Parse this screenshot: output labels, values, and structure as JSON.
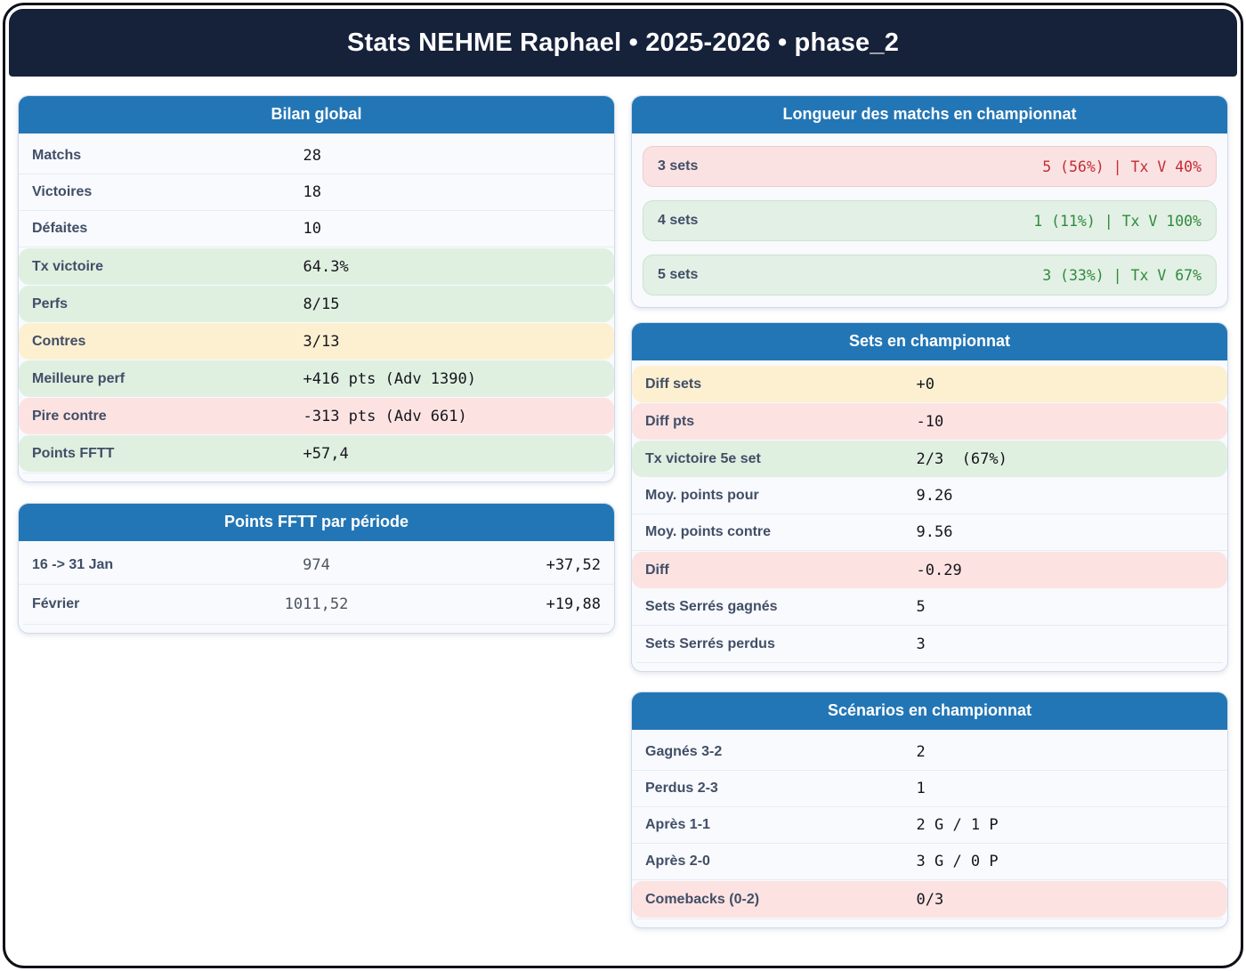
{
  "header": {
    "title": "Stats NEHME Raphael • 2025-2026 • phase_2"
  },
  "colors": {
    "frame": "#101018",
    "navy": "#16213a",
    "accent": "#2376b5",
    "positive_text": "#2e8b3c",
    "negative_text": "#c22d36",
    "green_tint": "#dff0e1",
    "yellow_tint": "#fdf0d1",
    "red_tint": "#fce3e2"
  },
  "panels": {
    "bilan": {
      "title": "Bilan global",
      "rows": [
        {
          "label": "Matchs",
          "value": "28",
          "tone": "plain"
        },
        {
          "label": "Victoires",
          "value": "18",
          "tone": "plain"
        },
        {
          "label": "Défaites",
          "value": "10",
          "tone": "plain"
        },
        {
          "label": "Tx victoire",
          "value": "64.3%",
          "tone": "green"
        },
        {
          "label": "Perfs",
          "value": "8/15",
          "tone": "green"
        },
        {
          "label": "Contres",
          "value": "3/13",
          "tone": "yellow"
        },
        {
          "label": "Meilleure perf",
          "value": "+416 pts (Adv 1390)",
          "tone": "green"
        },
        {
          "label": "Pire contre",
          "value": "-313 pts (Adv 661)",
          "tone": "red"
        },
        {
          "label": "Points FFTT",
          "value": "+57,4",
          "tone": "green"
        }
      ]
    },
    "periode": {
      "title": "Points FFTT par période",
      "rows": [
        {
          "label": "16 -> 31 Jan",
          "points": "974",
          "delta": "+37,52"
        },
        {
          "label": "Février",
          "points": "1011,52",
          "delta": "+19,88"
        }
      ]
    },
    "longueur": {
      "title": "Longueur des matchs en championnat",
      "rows": [
        {
          "label": "3 sets",
          "value": "5 (56%) | Tx V 40%",
          "tone": "red"
        },
        {
          "label": "4 sets",
          "value": "1 (11%) | Tx V 100%",
          "tone": "green"
        },
        {
          "label": "5 sets",
          "value": "3 (33%) | Tx V 67%",
          "tone": "green"
        }
      ]
    },
    "sets": {
      "title": "Sets en championnat",
      "rows": [
        {
          "label": "Diff sets",
          "value": "+0",
          "tone": "yellow"
        },
        {
          "label": "Diff pts",
          "value": "-10",
          "tone": "red"
        },
        {
          "label": "Tx victoire 5e set",
          "value": "2/3  (67%)",
          "tone": "green"
        },
        {
          "label": "Moy. points pour",
          "value": "9.26",
          "tone": "plain"
        },
        {
          "label": "Moy. points contre",
          "value": "9.56",
          "tone": "plain"
        },
        {
          "label": "Diff",
          "value": "-0.29",
          "tone": "red"
        },
        {
          "label": "Sets Serrés gagnés",
          "value": "5",
          "tone": "plain"
        },
        {
          "label": "Sets Serrés perdus",
          "value": "3",
          "tone": "plain"
        }
      ]
    },
    "scenarios": {
      "title": "Scénarios en championnat",
      "rows": [
        {
          "label": "Gagnés 3-2",
          "value": "2",
          "tone": "plain"
        },
        {
          "label": "Perdus 2-3",
          "value": "1",
          "tone": "plain"
        },
        {
          "label": "Après 1-1",
          "value": "2 G / 1 P",
          "tone": "plain"
        },
        {
          "label": "Après 2-0",
          "value": "3 G / 0 P",
          "tone": "plain"
        },
        {
          "label": "Comebacks (0-2)",
          "value": "0/3",
          "tone": "red"
        }
      ]
    }
  }
}
